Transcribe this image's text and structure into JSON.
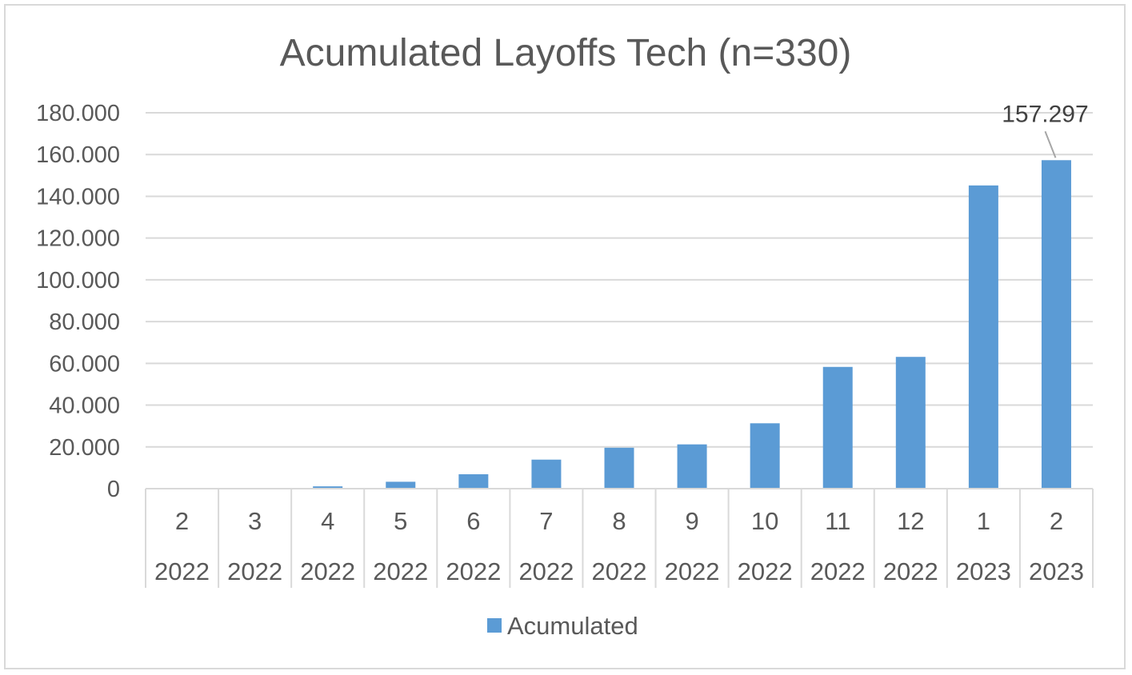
{
  "chart_data": {
    "type": "bar",
    "title": "Acumulated Layoffs Tech (n=330)",
    "categories": [
      {
        "month": "2",
        "year": "2022"
      },
      {
        "month": "3",
        "year": "2022"
      },
      {
        "month": "4",
        "year": "2022"
      },
      {
        "month": "5",
        "year": "2022"
      },
      {
        "month": "6",
        "year": "2022"
      },
      {
        "month": "7",
        "year": "2022"
      },
      {
        "month": "8",
        "year": "2022"
      },
      {
        "month": "9",
        "year": "2022"
      },
      {
        "month": "10",
        "year": "2022"
      },
      {
        "month": "11",
        "year": "2022"
      },
      {
        "month": "12",
        "year": "2022"
      },
      {
        "month": "1",
        "year": "2023"
      },
      {
        "month": "2",
        "year": "2023"
      }
    ],
    "series": [
      {
        "name": "Acumulated",
        "color": "#5b9bd5",
        "values": [
          100,
          300,
          1100,
          3300,
          6900,
          13900,
          19600,
          21200,
          31300,
          58300,
          63100,
          145200,
          157297
        ]
      }
    ],
    "ylim": [
      0,
      180000
    ],
    "yticks": [
      0,
      20000,
      40000,
      60000,
      80000,
      100000,
      120000,
      140000,
      160000,
      180000
    ],
    "ytick_labels": [
      "0",
      "20.000",
      "40.000",
      "60.000",
      "80.000",
      "100.000",
      "120.000",
      "140.000",
      "160.000",
      "180.000"
    ],
    "data_labels": [
      {
        "index": 12,
        "text": "157.297"
      }
    ],
    "grid": true,
    "legend": "bottom",
    "legend_label": "Acumulated"
  }
}
